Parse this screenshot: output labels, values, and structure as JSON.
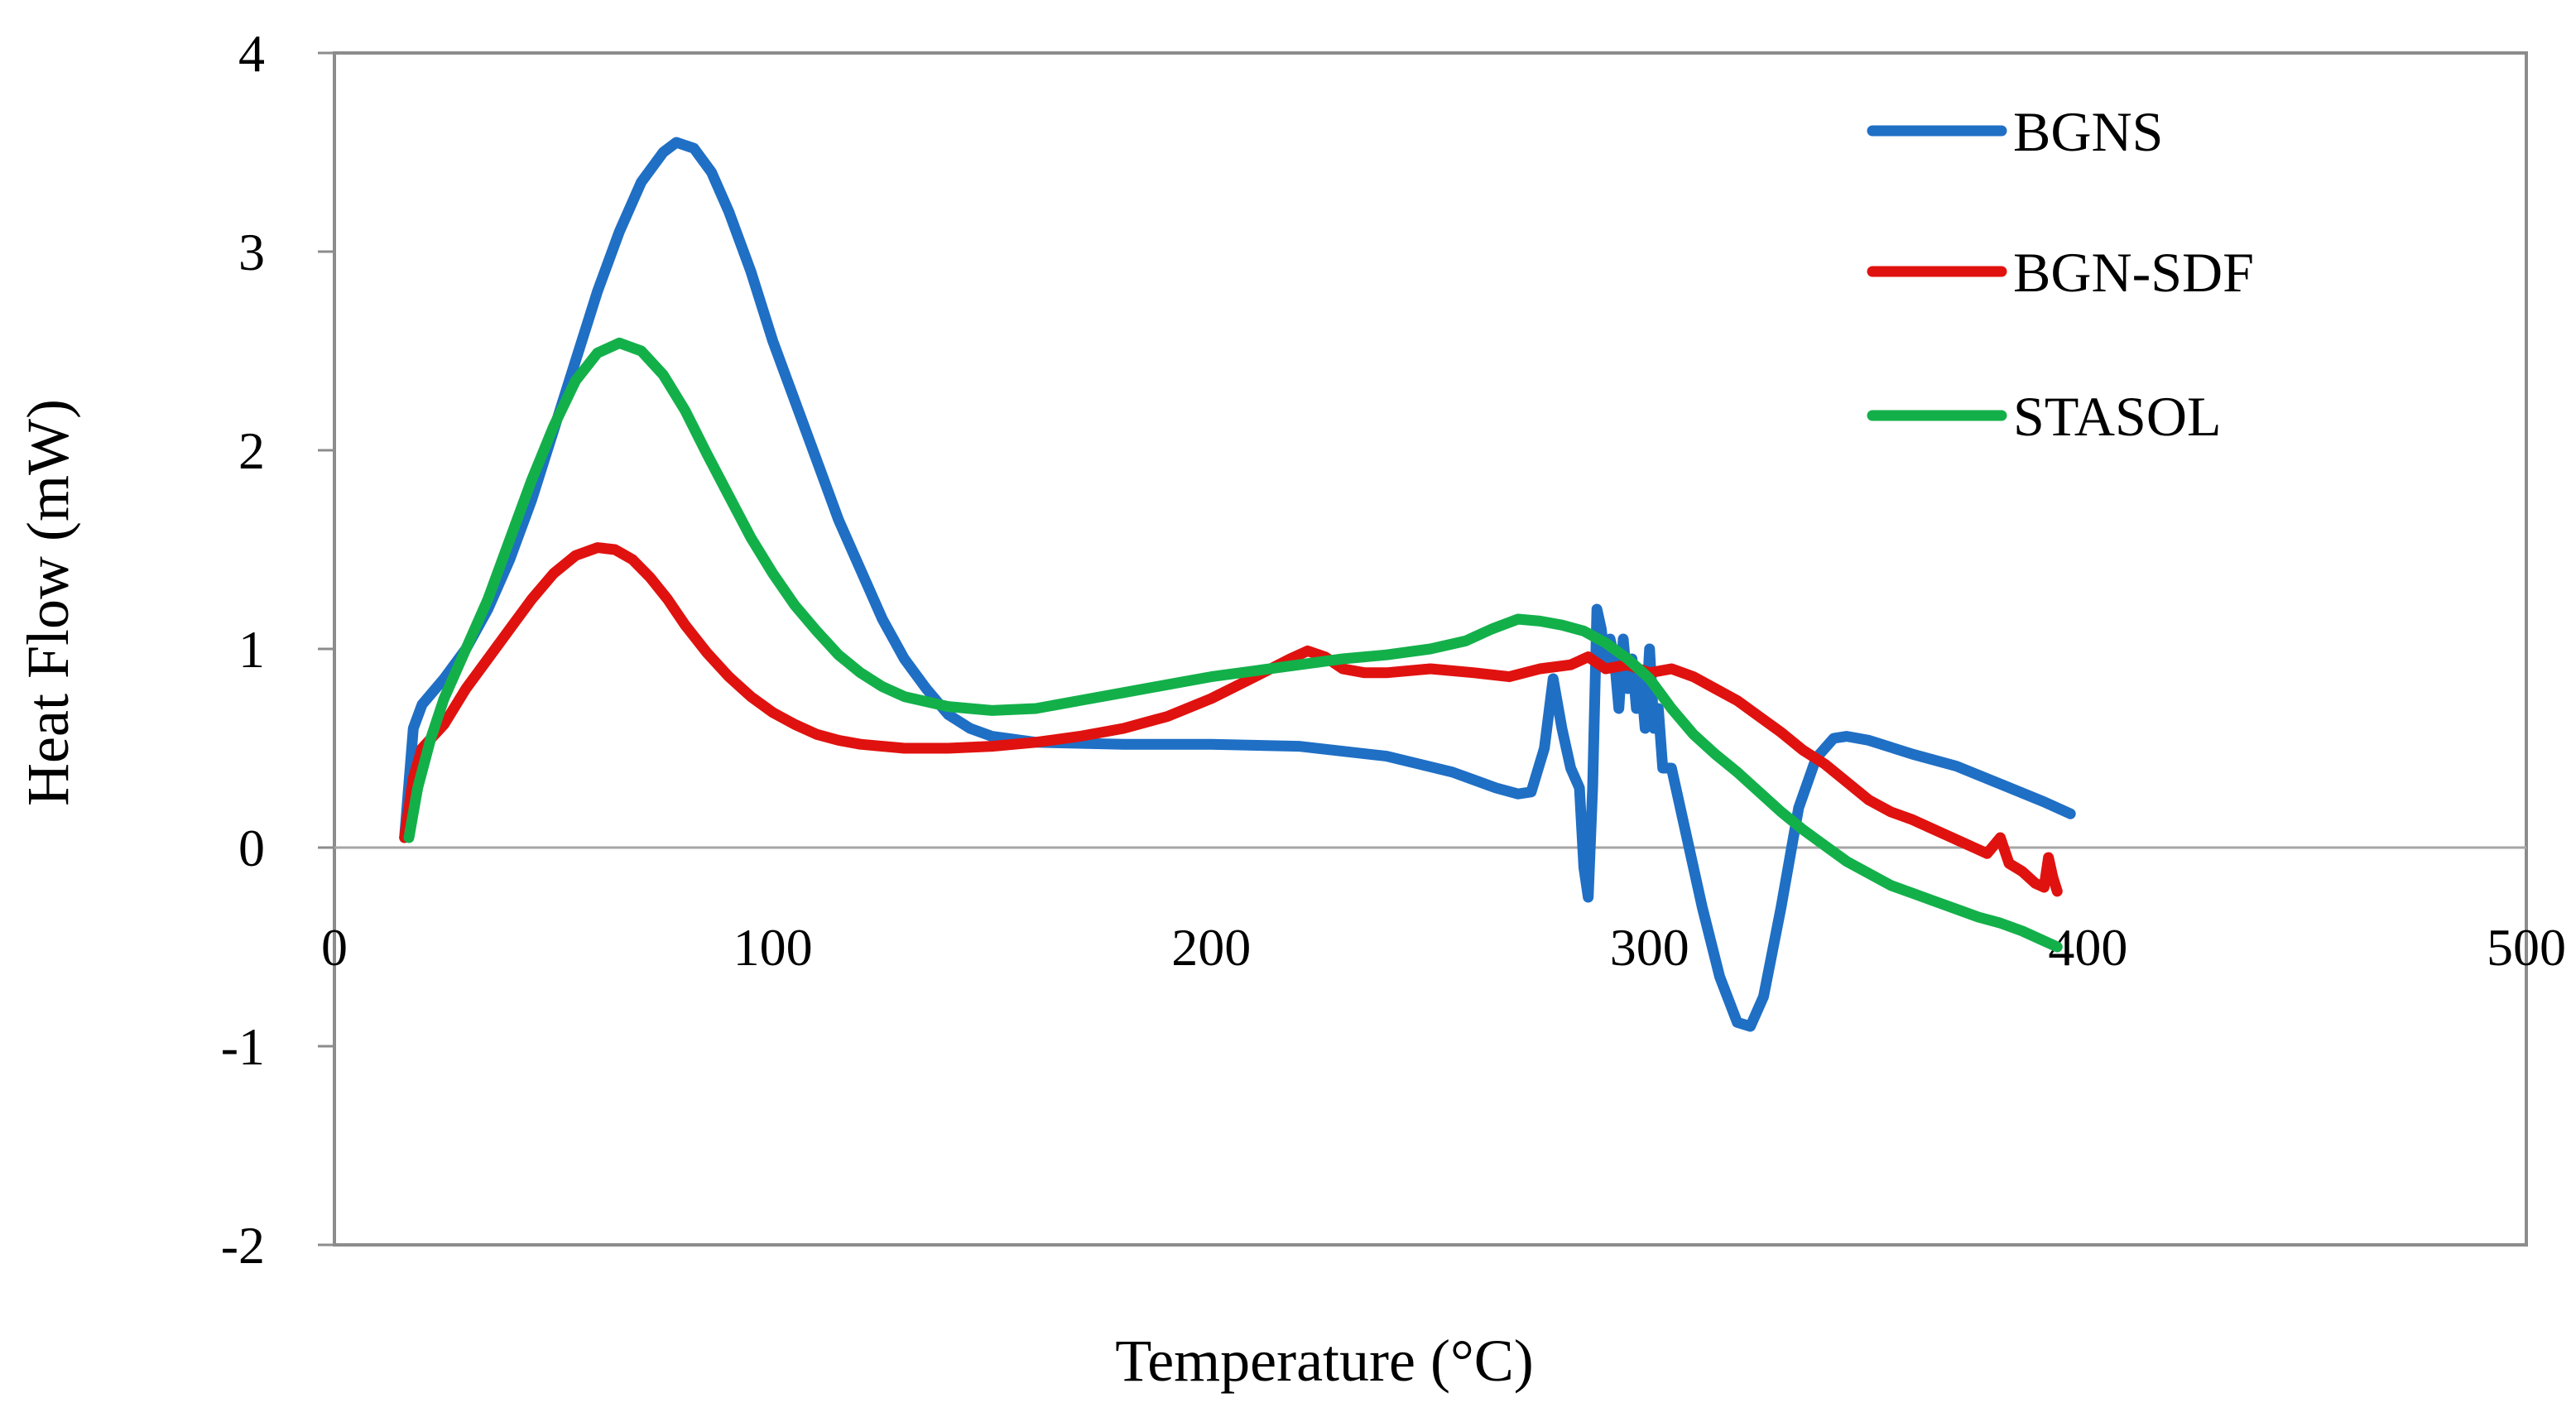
{
  "chart_data": {
    "type": "line",
    "title": "",
    "xlabel": "Temperature (°C)",
    "ylabel": "Heat Flow (mW)",
    "xlim": [
      0,
      500
    ],
    "ylim": [
      -2,
      4
    ],
    "xticks": [
      0,
      100,
      200,
      300,
      400,
      500
    ],
    "yticks": [
      -2,
      -1,
      0,
      1,
      2,
      3,
      4
    ],
    "xtick_labels": [
      "0",
      "100",
      "200",
      "300",
      "400",
      "500"
    ],
    "ytick_labels": [
      "-2",
      "-1",
      "0",
      "1",
      "2",
      "3",
      "4"
    ],
    "grid": false,
    "legend_position": "top-right",
    "series": [
      {
        "name": "BGNS",
        "color": "#1F6FC5",
        "points": [
          [
            16,
            0.05
          ],
          [
            18,
            0.6
          ],
          [
            20,
            0.72
          ],
          [
            25,
            0.85
          ],
          [
            30,
            1.0
          ],
          [
            35,
            1.2
          ],
          [
            40,
            1.45
          ],
          [
            45,
            1.75
          ],
          [
            50,
            2.1
          ],
          [
            55,
            2.45
          ],
          [
            60,
            2.8
          ],
          [
            65,
            3.1
          ],
          [
            70,
            3.35
          ],
          [
            75,
            3.5
          ],
          [
            78,
            3.55
          ],
          [
            82,
            3.52
          ],
          [
            86,
            3.4
          ],
          [
            90,
            3.2
          ],
          [
            95,
            2.9
          ],
          [
            100,
            2.55
          ],
          [
            105,
            2.25
          ],
          [
            110,
            1.95
          ],
          [
            115,
            1.65
          ],
          [
            120,
            1.4
          ],
          [
            125,
            1.15
          ],
          [
            130,
            0.95
          ],
          [
            135,
            0.8
          ],
          [
            140,
            0.67
          ],
          [
            145,
            0.6
          ],
          [
            150,
            0.56
          ],
          [
            160,
            0.53
          ],
          [
            180,
            0.52
          ],
          [
            200,
            0.52
          ],
          [
            220,
            0.51
          ],
          [
            240,
            0.46
          ],
          [
            255,
            0.38
          ],
          [
            265,
            0.3
          ],
          [
            270,
            0.27
          ],
          [
            273,
            0.28
          ],
          [
            276,
            0.5
          ],
          [
            278,
            0.85
          ],
          [
            280,
            0.6
          ],
          [
            282,
            0.4
          ],
          [
            284,
            0.3
          ],
          [
            285,
            -0.1
          ],
          [
            286,
            -0.25
          ],
          [
            287,
            0.3
          ],
          [
            288,
            1.2
          ],
          [
            289,
            1.1
          ],
          [
            290,
            0.9
          ],
          [
            291,
            1.05
          ],
          [
            292,
            0.95
          ],
          [
            293,
            0.7
          ],
          [
            294,
            1.05
          ],
          [
            295,
            0.8
          ],
          [
            296,
            0.95
          ],
          [
            297,
            0.7
          ],
          [
            298,
            0.85
          ],
          [
            299,
            0.6
          ],
          [
            300,
            1.0
          ],
          [
            301,
            0.6
          ],
          [
            302,
            0.7
          ],
          [
            303,
            0.4
          ],
          [
            305,
            0.4
          ],
          [
            308,
            0.1
          ],
          [
            312,
            -0.3
          ],
          [
            316,
            -0.65
          ],
          [
            320,
            -0.88
          ],
          [
            323,
            -0.9
          ],
          [
            326,
            -0.75
          ],
          [
            330,
            -0.3
          ],
          [
            334,
            0.2
          ],
          [
            338,
            0.45
          ],
          [
            342,
            0.55
          ],
          [
            345,
            0.56
          ],
          [
            350,
            0.54
          ],
          [
            360,
            0.47
          ],
          [
            370,
            0.41
          ],
          [
            380,
            0.32
          ],
          [
            390,
            0.23
          ],
          [
            396,
            0.17
          ]
        ]
      },
      {
        "name": "BGN-SDF",
        "color": "#E0120F",
        "points": [
          [
            16,
            0.05
          ],
          [
            18,
            0.35
          ],
          [
            20,
            0.5
          ],
          [
            25,
            0.62
          ],
          [
            30,
            0.8
          ],
          [
            35,
            0.95
          ],
          [
            40,
            1.1
          ],
          [
            45,
            1.25
          ],
          [
            50,
            1.38
          ],
          [
            55,
            1.47
          ],
          [
            60,
            1.51
          ],
          [
            64,
            1.5
          ],
          [
            68,
            1.45
          ],
          [
            72,
            1.36
          ],
          [
            76,
            1.25
          ],
          [
            80,
            1.12
          ],
          [
            85,
            0.98
          ],
          [
            90,
            0.86
          ],
          [
            95,
            0.76
          ],
          [
            100,
            0.68
          ],
          [
            105,
            0.62
          ],
          [
            110,
            0.57
          ],
          [
            115,
            0.54
          ],
          [
            120,
            0.52
          ],
          [
            130,
            0.5
          ],
          [
            140,
            0.5
          ],
          [
            150,
            0.51
          ],
          [
            160,
            0.53
          ],
          [
            170,
            0.56
          ],
          [
            180,
            0.6
          ],
          [
            190,
            0.66
          ],
          [
            200,
            0.75
          ],
          [
            210,
            0.86
          ],
          [
            218,
            0.95
          ],
          [
            222,
            0.99
          ],
          [
            226,
            0.96
          ],
          [
            230,
            0.9
          ],
          [
            235,
            0.88
          ],
          [
            240,
            0.88
          ],
          [
            250,
            0.9
          ],
          [
            260,
            0.88
          ],
          [
            268,
            0.86
          ],
          [
            275,
            0.9
          ],
          [
            282,
            0.92
          ],
          [
            286,
            0.96
          ],
          [
            290,
            0.9
          ],
          [
            295,
            0.92
          ],
          [
            300,
            0.88
          ],
          [
            305,
            0.9
          ],
          [
            310,
            0.86
          ],
          [
            315,
            0.8
          ],
          [
            320,
            0.74
          ],
          [
            325,
            0.66
          ],
          [
            330,
            0.58
          ],
          [
            335,
            0.49
          ],
          [
            340,
            0.42
          ],
          [
            345,
            0.33
          ],
          [
            350,
            0.24
          ],
          [
            355,
            0.18
          ],
          [
            360,
            0.14
          ],
          [
            365,
            0.09
          ],
          [
            370,
            0.04
          ],
          [
            374,
            0.0
          ],
          [
            377,
            -0.03
          ],
          [
            380,
            0.05
          ],
          [
            382,
            -0.08
          ],
          [
            385,
            -0.12
          ],
          [
            388,
            -0.18
          ],
          [
            390,
            -0.2
          ],
          [
            391,
            -0.05
          ],
          [
            392,
            -0.15
          ],
          [
            393,
            -0.22
          ]
        ]
      },
      {
        "name": "STASOL",
        "color": "#13B04A",
        "points": [
          [
            17,
            0.05
          ],
          [
            19,
            0.3
          ],
          [
            22,
            0.55
          ],
          [
            25,
            0.75
          ],
          [
            30,
            1.0
          ],
          [
            35,
            1.25
          ],
          [
            40,
            1.55
          ],
          [
            45,
            1.85
          ],
          [
            50,
            2.12
          ],
          [
            55,
            2.35
          ],
          [
            60,
            2.49
          ],
          [
            65,
            2.54
          ],
          [
            70,
            2.5
          ],
          [
            75,
            2.38
          ],
          [
            80,
            2.2
          ],
          [
            85,
            1.98
          ],
          [
            90,
            1.77
          ],
          [
            95,
            1.56
          ],
          [
            100,
            1.38
          ],
          [
            105,
            1.22
          ],
          [
            110,
            1.09
          ],
          [
            115,
            0.97
          ],
          [
            120,
            0.88
          ],
          [
            125,
            0.81
          ],
          [
            130,
            0.76
          ],
          [
            140,
            0.71
          ],
          [
            150,
            0.69
          ],
          [
            160,
            0.7
          ],
          [
            170,
            0.74
          ],
          [
            180,
            0.78
          ],
          [
            190,
            0.82
          ],
          [
            200,
            0.86
          ],
          [
            210,
            0.89
          ],
          [
            220,
            0.92
          ],
          [
            230,
            0.95
          ],
          [
            240,
            0.97
          ],
          [
            250,
            1.0
          ],
          [
            258,
            1.04
          ],
          [
            264,
            1.1
          ],
          [
            270,
            1.15
          ],
          [
            275,
            1.14
          ],
          [
            280,
            1.12
          ],
          [
            285,
            1.09
          ],
          [
            290,
            1.03
          ],
          [
            295,
            0.95
          ],
          [
            300,
            0.85
          ],
          [
            305,
            0.7
          ],
          [
            310,
            0.57
          ],
          [
            315,
            0.47
          ],
          [
            320,
            0.38
          ],
          [
            325,
            0.28
          ],
          [
            330,
            0.18
          ],
          [
            335,
            0.09
          ],
          [
            340,
            0.01
          ],
          [
            345,
            -0.07
          ],
          [
            350,
            -0.13
          ],
          [
            355,
            -0.19
          ],
          [
            360,
            -0.23
          ],
          [
            365,
            -0.27
          ],
          [
            370,
            -0.31
          ],
          [
            375,
            -0.35
          ],
          [
            380,
            -0.38
          ],
          [
            385,
            -0.42
          ],
          [
            390,
            -0.47
          ],
          [
            393,
            -0.5
          ]
        ]
      }
    ]
  }
}
